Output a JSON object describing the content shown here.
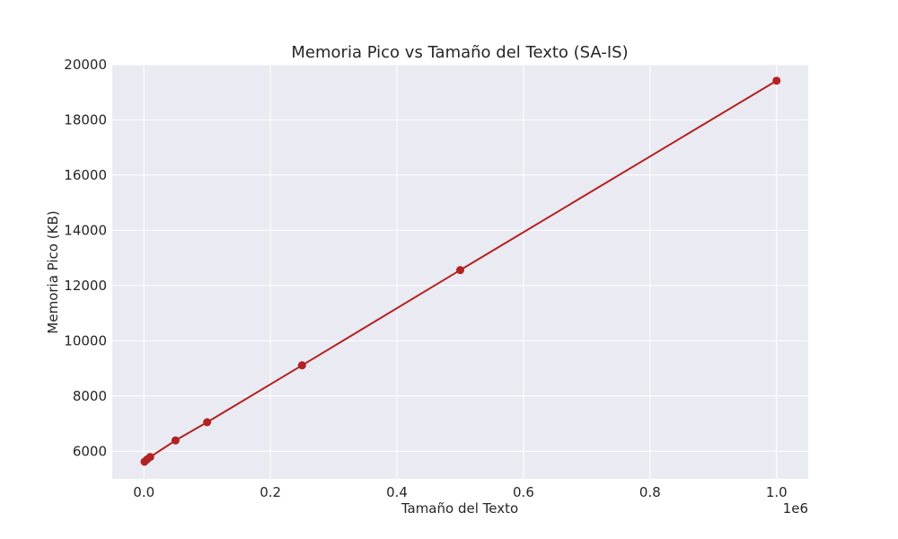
{
  "chart_data": {
    "type": "line",
    "title": "Memoria Pico vs Tamaño del Texto (SA-IS)",
    "xlabel": "Tamaño del Texto",
    "ylabel": "Memoria Pico (KB)",
    "x_offset_label": "1e6",
    "x_scale": 1000000,
    "xlim": [
      -50000,
      1050000
    ],
    "ylim": [
      5000,
      20000
    ],
    "x_ticks": [
      0,
      200000,
      400000,
      600000,
      800000,
      1000000
    ],
    "x_tick_labels": [
      "0.0",
      "0.2",
      "0.4",
      "0.6",
      "0.8",
      "1.0"
    ],
    "y_ticks": [
      6000,
      8000,
      10000,
      12000,
      14000,
      16000,
      18000,
      20000
    ],
    "y_tick_labels": [
      "6000",
      "8000",
      "10000",
      "12000",
      "14000",
      "16000",
      "18000",
      "20000"
    ],
    "grid": true,
    "series": [
      {
        "color": "#b22222",
        "marker": "circle",
        "x": [
          1000,
          5000,
          10000,
          50000,
          100000,
          250000,
          500000,
          1000000
        ],
        "y": [
          5620,
          5700,
          5790,
          6390,
          7050,
          9110,
          12560,
          19420
        ]
      }
    ]
  },
  "colors": {
    "plot_background": "#eaeaf2",
    "grid": "#ffffff",
    "line": "#b22222"
  }
}
